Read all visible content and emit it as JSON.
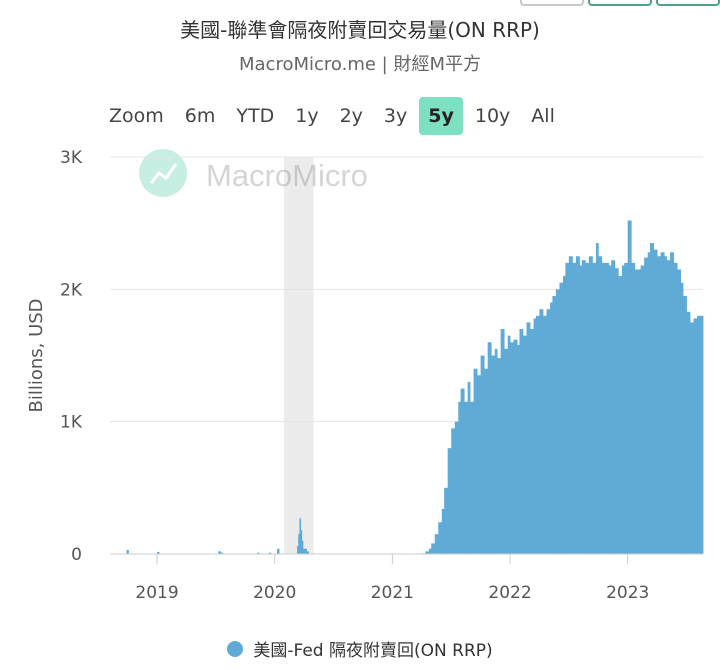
{
  "colors": {
    "series": "#5faad6",
    "range_active_bg": "#7ee0c3",
    "grid": "#e4e4e4",
    "shade": "#ececec",
    "top_button_border": "#4aa584",
    "top_button_border_left": "#c9c9c9"
  },
  "header": {
    "title": "美國-聯準會隔夜附賣回交易量(ON RRP)",
    "subtitle": "MacroMicro.me | 財經M平方"
  },
  "range_selector": {
    "items": [
      "Zoom",
      "6m",
      "YTD",
      "1y",
      "2y",
      "3y",
      "5y",
      "10y",
      "All"
    ],
    "active": "5y"
  },
  "watermark": {
    "text": "MacroMicro",
    "icon": "chart-line-icon"
  },
  "chart_data": {
    "type": "bar",
    "title": "美國-聯準會隔夜附賣回交易量(ON RRP)",
    "xlabel": "",
    "ylabel": "Billions, USD",
    "ylim": [
      0,
      3000
    ],
    "yticks": [
      0,
      1000,
      2000,
      3000
    ],
    "ytick_labels": [
      "0",
      "1K",
      "2K",
      "3K"
    ],
    "xlim": [
      2018.6,
      2023.64
    ],
    "xticks": [
      2019,
      2020,
      2021,
      2022,
      2023
    ],
    "xtick_labels": [
      "2019",
      "2020",
      "2021",
      "2022",
      "2023"
    ],
    "shaded_regions": [
      [
        2020.08,
        2020.33
      ]
    ],
    "legend": "bottom-center",
    "grid": true,
    "series": [
      {
        "name": "美國-Fed 隔夜附賣回(ON RRP)",
        "points": [
          [
            2018.74,
            30
          ],
          [
            2019.0,
            15
          ],
          [
            2019.52,
            20
          ],
          [
            2019.54,
            10
          ],
          [
            2019.85,
            10
          ],
          [
            2019.95,
            10
          ],
          [
            2020.02,
            40
          ],
          [
            2020.19,
            60
          ],
          [
            2020.2,
            150
          ],
          [
            2020.21,
            270
          ],
          [
            2020.22,
            180
          ],
          [
            2020.23,
            100
          ],
          [
            2020.24,
            40
          ],
          [
            2020.27,
            20
          ],
          [
            2021.25,
            5
          ],
          [
            2021.28,
            20
          ],
          [
            2021.31,
            40
          ],
          [
            2021.33,
            80
          ],
          [
            2021.36,
            150
          ],
          [
            2021.39,
            240
          ],
          [
            2021.42,
            340
          ],
          [
            2021.44,
            500
          ],
          [
            2021.47,
            800
          ],
          [
            2021.5,
            950
          ],
          [
            2021.53,
            1000
          ],
          [
            2021.56,
            1150
          ],
          [
            2021.58,
            1250
          ],
          [
            2021.61,
            1150
          ],
          [
            2021.64,
            1300
          ],
          [
            2021.66,
            1150
          ],
          [
            2021.69,
            1400
          ],
          [
            2021.72,
            1350
          ],
          [
            2021.75,
            1500
          ],
          [
            2021.78,
            1400
          ],
          [
            2021.81,
            1600
          ],
          [
            2021.84,
            1500
          ],
          [
            2021.87,
            1550
          ],
          [
            2021.89,
            1480
          ],
          [
            2021.92,
            1700
          ],
          [
            2021.95,
            1550
          ],
          [
            2021.98,
            1650
          ],
          [
            2022.0,
            1600
          ],
          [
            2022.03,
            1620
          ],
          [
            2022.06,
            1580
          ],
          [
            2022.08,
            1700
          ],
          [
            2022.11,
            1650
          ],
          [
            2022.14,
            1750
          ],
          [
            2022.17,
            1700
          ],
          [
            2022.2,
            1780
          ],
          [
            2022.22,
            1800
          ],
          [
            2022.25,
            1850
          ],
          [
            2022.28,
            1800
          ],
          [
            2022.31,
            1850
          ],
          [
            2022.34,
            1900
          ],
          [
            2022.36,
            1950
          ],
          [
            2022.39,
            2000
          ],
          [
            2022.42,
            2050
          ],
          [
            2022.45,
            2100
          ],
          [
            2022.47,
            2200
          ],
          [
            2022.5,
            2250
          ],
          [
            2022.53,
            2200
          ],
          [
            2022.56,
            2250
          ],
          [
            2022.59,
            2180
          ],
          [
            2022.61,
            2220
          ],
          [
            2022.64,
            2200
          ],
          [
            2022.67,
            2250
          ],
          [
            2022.7,
            2200
          ],
          [
            2022.73,
            2350
          ],
          [
            2022.75,
            2250
          ],
          [
            2022.78,
            2200
          ],
          [
            2022.81,
            2200
          ],
          [
            2022.84,
            2180
          ],
          [
            2022.86,
            2220
          ],
          [
            2022.89,
            2160
          ],
          [
            2022.92,
            2100
          ],
          [
            2022.95,
            2180
          ],
          [
            2022.97,
            2200
          ],
          [
            2023.0,
            2520
          ],
          [
            2023.03,
            2200
          ],
          [
            2023.06,
            2150
          ],
          [
            2023.08,
            2150
          ],
          [
            2023.11,
            2180
          ],
          [
            2023.14,
            2240
          ],
          [
            2023.17,
            2280
          ],
          [
            2023.19,
            2350
          ],
          [
            2023.22,
            2300
          ],
          [
            2023.25,
            2250
          ],
          [
            2023.28,
            2280
          ],
          [
            2023.31,
            2250
          ],
          [
            2023.33,
            2220
          ],
          [
            2023.36,
            2280
          ],
          [
            2023.39,
            2200
          ],
          [
            2023.42,
            2150
          ],
          [
            2023.45,
            2050
          ],
          [
            2023.47,
            1950
          ],
          [
            2023.5,
            1830
          ],
          [
            2023.53,
            1750
          ],
          [
            2023.56,
            1780
          ],
          [
            2023.59,
            1800
          ],
          [
            2023.62,
            1800
          ]
        ]
      }
    ]
  }
}
